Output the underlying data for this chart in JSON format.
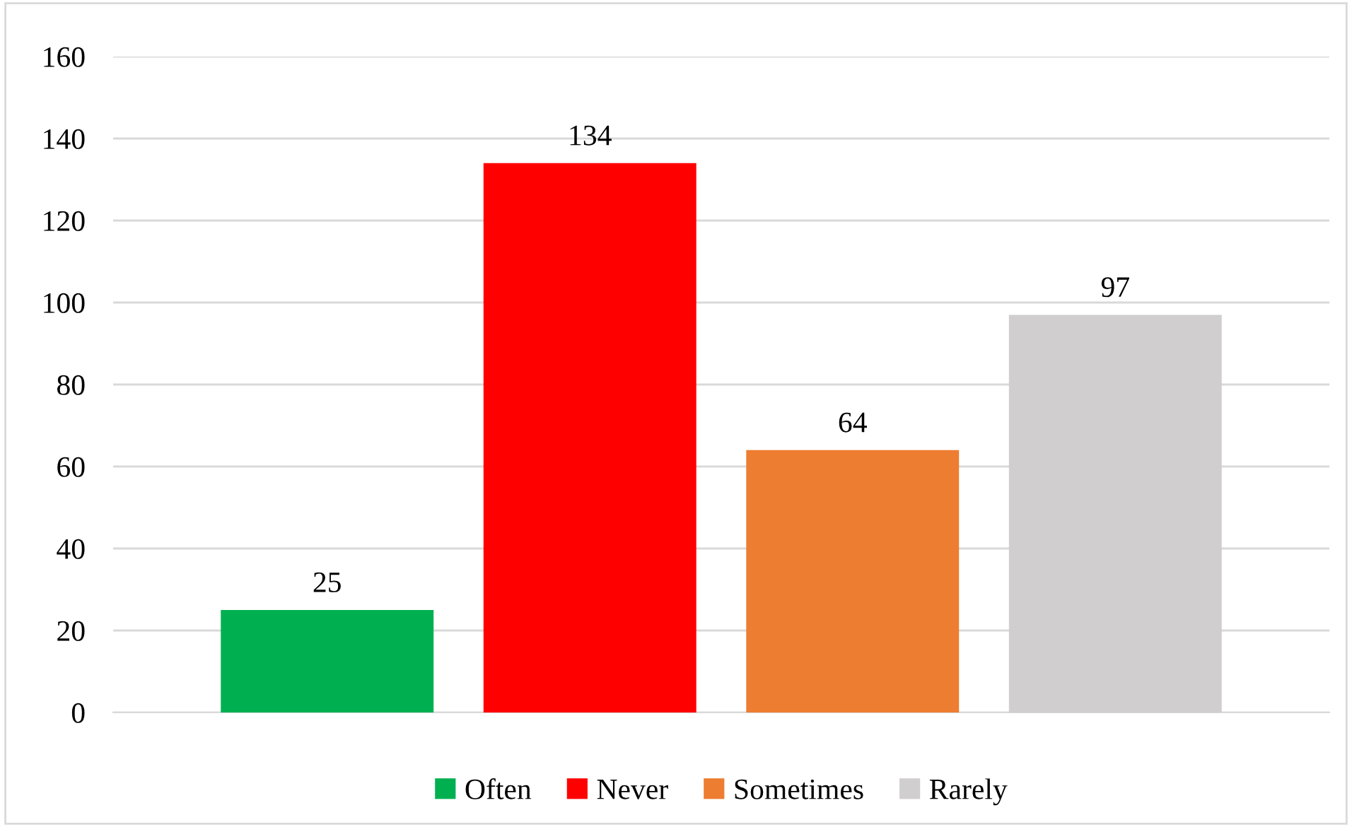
{
  "chart_data": {
    "type": "bar",
    "categories": [
      null
    ],
    "series": [
      {
        "name": "Often",
        "color": "#00b050",
        "values": [
          25
        ]
      },
      {
        "name": "Never",
        "color": "#ff0000",
        "values": [
          134
        ]
      },
      {
        "name": "Sometimes",
        "color": "#ed7d31",
        "values": [
          64
        ]
      },
      {
        "name": "Rarely",
        "color": "#d0cece",
        "values": [
          97
        ]
      }
    ],
    "ylim": [
      0,
      160
    ],
    "yticks": [
      0,
      20,
      40,
      60,
      80,
      100,
      120,
      140,
      160
    ],
    "grid": "y",
    "legend": "bottom",
    "data_labels": true
  }
}
